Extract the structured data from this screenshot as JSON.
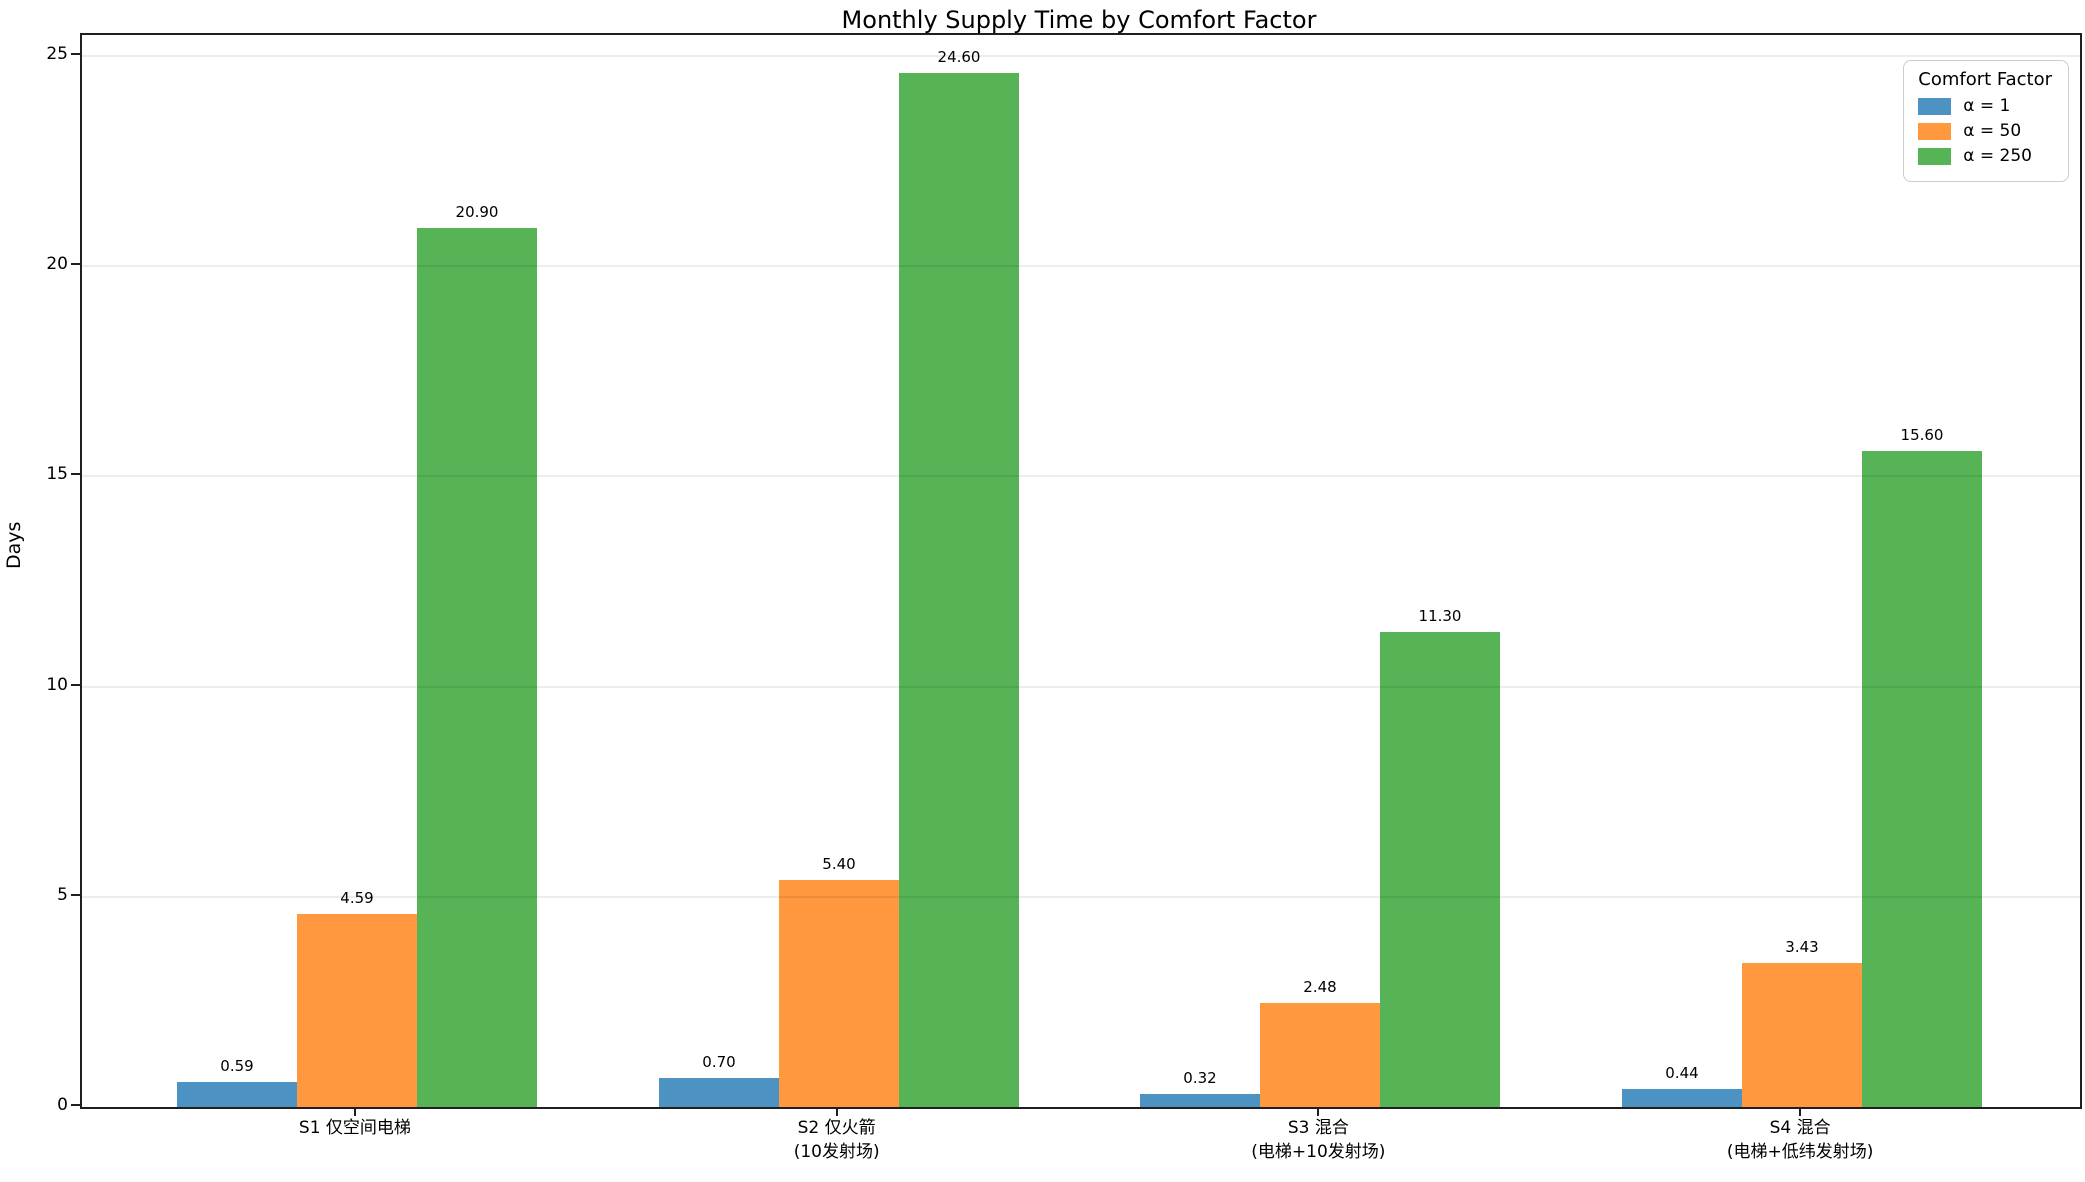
{
  "chart_data": {
    "type": "bar",
    "title": "Monthly Supply Time by Comfort Factor",
    "ylabel": "Days",
    "xlabel": "",
    "ylim": [
      0,
      25.5
    ],
    "yticks": [
      0,
      5,
      10,
      15,
      20,
      25
    ],
    "grid": true,
    "legend_title": "Comfort Factor",
    "legend_position": "upper right",
    "value_label_decimals": 2,
    "categories": [
      [
        "S1 仅空间电梯"
      ],
      [
        "S2 仅火箭",
        "(10发射场)"
      ],
      [
        "S3 混合",
        "(电梯+10发射场)"
      ],
      [
        "S4 混合",
        "(电梯+低纬发射场)"
      ]
    ],
    "series": [
      {
        "name": "α = 1",
        "color": "#4C92C3",
        "values": [
          0.59,
          0.7,
          0.32,
          0.44
        ]
      },
      {
        "name": "α = 50",
        "color": "#FF983E",
        "values": [
          4.59,
          5.4,
          2.48,
          3.43
        ]
      },
      {
        "name": "α = 250",
        "color": "#56B356",
        "values": [
          20.9,
          24.6,
          11.3,
          15.6
        ]
      }
    ]
  }
}
